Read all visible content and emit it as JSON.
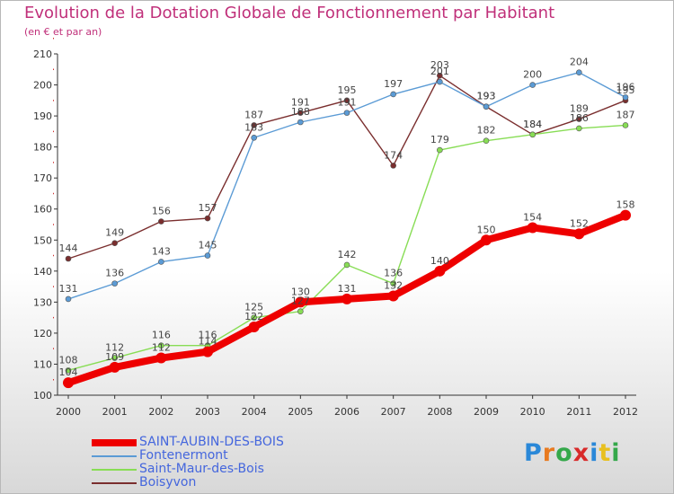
{
  "title": "Evolution de la Dotation Globale de Fonctionnement par Habitant",
  "subtitle": "(en € et par an)",
  "logo": {
    "text": "Proxiti",
    "colors": [
      "#2a88d8",
      "#e87a20",
      "#34a84a",
      "#d82a2a",
      "#2a88d8",
      "#e8c020",
      "#34a84a"
    ]
  },
  "chart_data": {
    "type": "line",
    "title": "Evolution de la Dotation Globale de Fonctionnement par Habitant",
    "subtitle": "(en € et par an)",
    "xlabel": "",
    "ylabel": "",
    "x": [
      "2000",
      "2001",
      "2002",
      "2003",
      "2004",
      "2005",
      "2006",
      "2007",
      "2008",
      "2009",
      "2010",
      "2011",
      "2012"
    ],
    "ylim": [
      100,
      210
    ],
    "yticks": [
      "100",
      "110",
      "120",
      "130",
      "140",
      "150",
      "160",
      "170",
      "180",
      "190",
      "200",
      "210"
    ],
    "grid": false,
    "legend_position": "bottom-left",
    "series": [
      {
        "name": "SAINT-AUBIN-DES-BOIS",
        "color": "#ee0000",
        "values": [
          104,
          109,
          112,
          114,
          122,
          130,
          131,
          132,
          140,
          150,
          154,
          152,
          158
        ],
        "labels": [
          "104",
          "109",
          "112",
          "114",
          "122",
          "130",
          "131",
          "132",
          "140",
          "150",
          "154",
          "152",
          "158"
        ]
      },
      {
        "name": "Fontenermont",
        "color": "#5b9bd5",
        "values": [
          131,
          136,
          143,
          145,
          183,
          188,
          191,
          197,
          201,
          193,
          200,
          204,
          196
        ],
        "labels": [
          "131",
          "136",
          "143",
          "145",
          "183",
          "188",
          "191",
          "197",
          "201",
          "193",
          "200",
          "204",
          "196"
        ]
      },
      {
        "name": "Saint-Maur-des-Bois",
        "color": "#88dd55",
        "values": [
          108,
          112,
          116,
          116,
          125,
          127,
          142,
          136,
          179,
          182,
          184,
          186,
          187
        ],
        "labels": [
          "108",
          "112",
          "116",
          "116",
          "125",
          "127",
          "142",
          "136",
          "179",
          "182",
          "184",
          "186",
          "187"
        ]
      },
      {
        "name": "Boisyvon",
        "color": "#7a2e2e",
        "values": [
          144,
          149,
          156,
          157,
          187,
          191,
          195,
          174,
          203,
          193,
          184,
          189,
          195
        ],
        "labels": [
          "144",
          "149",
          "156",
          "157",
          "187",
          "191",
          "195",
          "174",
          "203",
          "193",
          "184",
          "189",
          "195"
        ]
      }
    ]
  }
}
